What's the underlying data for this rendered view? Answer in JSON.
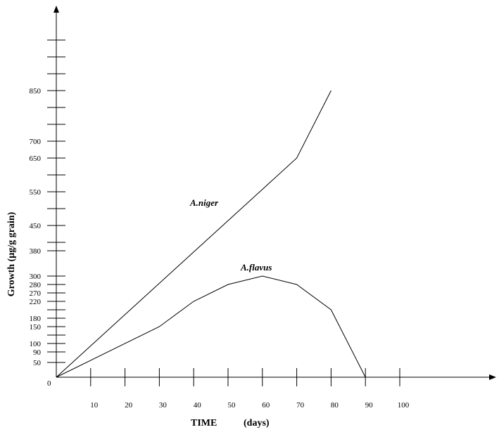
{
  "chart_data": {
    "type": "line",
    "title": "",
    "xlabel": "TIME",
    "xunit": "(days)",
    "ylabel": "Growth (µg/g grain)",
    "origin_label": "0",
    "x_ticks": [
      10,
      20,
      30,
      40,
      50,
      60,
      70,
      80,
      90,
      100
    ],
    "y_tick_labels": [
      "850",
      "700",
      "650",
      "550",
      "450",
      "380",
      "300",
      "280",
      "270",
      "220",
      "180",
      "150",
      "100",
      "90",
      "50"
    ],
    "grid": false,
    "series": [
      {
        "name": "A.niger",
        "x": [
          0,
          70,
          80
        ],
        "y": [
          0,
          650,
          850
        ]
      },
      {
        "name": "A.flavus",
        "x": [
          0,
          30,
          40,
          50,
          60,
          70,
          80,
          90
        ],
        "y": [
          0,
          150,
          220,
          280,
          300,
          280,
          200,
          0
        ]
      }
    ]
  }
}
